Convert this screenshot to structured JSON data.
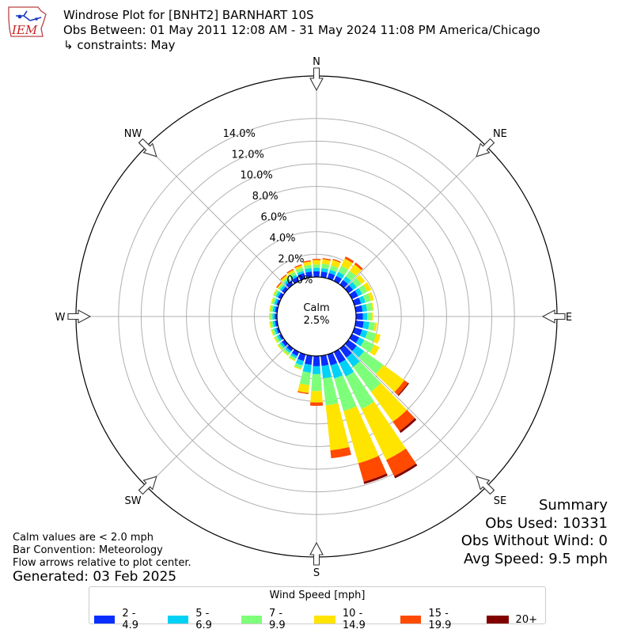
{
  "header": {
    "title": "Windrose Plot for [BNHT2] BARNHART 10S",
    "period": "Obs Between: 01 May 2011 12:08 AM - 31 May 2024 11:08 PM America/Chicago",
    "constraints": "↳ constraints: May"
  },
  "logo": {
    "text": "IEM"
  },
  "notes": {
    "calm_note": "Calm values are < 2.0 mph",
    "bar_convention": "Bar Convention: Meteorology",
    "flow_arrows": "Flow arrows relative to plot center.",
    "generated": "Generated: 03 Feb 2025"
  },
  "summary": {
    "title": "Summary",
    "obs_used": "Obs Used: 10331",
    "obs_without_wind": "Obs Without Wind: 0",
    "avg_speed": "Avg Speed: 9.5 mph"
  },
  "calm": {
    "label": "Calm",
    "value": "2.5%"
  },
  "legend": {
    "title": "Wind Speed [mph]",
    "items": [
      {
        "label": "2 - 4.9",
        "color": "#0a2eff"
      },
      {
        "label": "5 - 6.9",
        "color": "#00d2f5"
      },
      {
        "label": "7 - 9.9",
        "color": "#7eff7a"
      },
      {
        "label": "10 - 14.9",
        "color": "#ffe400"
      },
      {
        "label": "15 - 19.9",
        "color": "#ff4a00"
      },
      {
        "label": "20+",
        "color": "#800000"
      }
    ]
  },
  "chart_data": {
    "type": "windrose",
    "radial_ticks": [
      "0.0%",
      "2.0%",
      "4.0%",
      "6.0%",
      "8.0%",
      "10.0%",
      "12.0%",
      "14.0%"
    ],
    "radial_values": [
      0,
      2,
      4,
      6,
      8,
      10,
      12,
      14
    ],
    "calm_percent": 2.5,
    "directions": [
      "N",
      "NE",
      "E",
      "SE",
      "S",
      "SW",
      "W",
      "NW"
    ],
    "speed_bins": [
      "2 - 4.9",
      "5 - 6.9",
      "7 - 9.9",
      "10 - 14.9",
      "15 - 19.9",
      "20+"
    ],
    "sectors": [
      {
        "dir_deg": 0,
        "values": [
          0.5,
          0.3,
          0.3,
          0.4,
          0.1,
          0.0
        ]
      },
      {
        "dir_deg": 10,
        "values": [
          0.5,
          0.3,
          0.4,
          0.4,
          0.1,
          0.0
        ]
      },
      {
        "dir_deg": 20,
        "values": [
          0.5,
          0.3,
          0.4,
          0.5,
          0.1,
          0.0
        ]
      },
      {
        "dir_deg": 30,
        "values": [
          0.5,
          0.4,
          0.6,
          0.7,
          0.2,
          0.0
        ]
      },
      {
        "dir_deg": 40,
        "values": [
          0.5,
          0.4,
          0.6,
          0.7,
          0.2,
          0.0
        ]
      },
      {
        "dir_deg": 50,
        "values": [
          0.5,
          0.4,
          0.5,
          0.4,
          0.0,
          0.0
        ]
      },
      {
        "dir_deg": 60,
        "values": [
          0.6,
          0.4,
          0.5,
          0.4,
          0.0,
          0.0
        ]
      },
      {
        "dir_deg": 70,
        "values": [
          0.6,
          0.4,
          0.5,
          0.3,
          0.0,
          0.0
        ]
      },
      {
        "dir_deg": 80,
        "values": [
          0.6,
          0.4,
          0.5,
          0.1,
          0.0,
          0.0
        ]
      },
      {
        "dir_deg": 90,
        "values": [
          0.6,
          0.4,
          0.4,
          0.1,
          0.0,
          0.0
        ]
      },
      {
        "dir_deg": 100,
        "values": [
          0.7,
          0.5,
          0.5,
          0.2,
          0.0,
          0.0
        ]
      },
      {
        "dir_deg": 110,
        "values": [
          0.7,
          0.5,
          0.8,
          0.4,
          0.0,
          0.0
        ]
      },
      {
        "dir_deg": 120,
        "values": [
          0.7,
          0.5,
          1.0,
          0.5,
          0.0,
          0.0
        ]
      },
      {
        "dir_deg": 130,
        "values": [
          0.9,
          0.8,
          2.1,
          2.3,
          0.4,
          0.1
        ]
      },
      {
        "dir_deg": 140,
        "values": [
          1.0,
          1.0,
          2.7,
          3.3,
          1.0,
          0.2
        ]
      },
      {
        "dir_deg": 150,
        "values": [
          1.1,
          1.3,
          3.2,
          5.0,
          1.6,
          0.2
        ]
      },
      {
        "dir_deg": 160,
        "values": [
          1.0,
          1.2,
          3.0,
          4.8,
          1.7,
          0.2
        ]
      },
      {
        "dir_deg": 170,
        "values": [
          0.9,
          1.1,
          2.4,
          4.0,
          0.7,
          0.0
        ]
      },
      {
        "dir_deg": 180,
        "values": [
          0.9,
          0.7,
          1.5,
          1.0,
          0.3,
          0.0
        ]
      },
      {
        "dir_deg": 190,
        "values": [
          0.8,
          0.7,
          1.1,
          0.7,
          0.1,
          0.0
        ]
      },
      {
        "dir_deg": 200,
        "values": [
          0.6,
          0.4,
          0.3,
          0.1,
          0.0,
          0.0
        ]
      },
      {
        "dir_deg": 210,
        "values": [
          0.4,
          0.2,
          0.2,
          0.1,
          0.0,
          0.0
        ]
      },
      {
        "dir_deg": 220,
        "values": [
          0.3,
          0.2,
          0.2,
          0.1,
          0.0,
          0.0
        ]
      },
      {
        "dir_deg": 230,
        "values": [
          0.3,
          0.2,
          0.2,
          0.1,
          0.0,
          0.0
        ]
      },
      {
        "dir_deg": 240,
        "values": [
          0.2,
          0.2,
          0.2,
          0.1,
          0.0,
          0.0
        ]
      },
      {
        "dir_deg": 250,
        "values": [
          0.2,
          0.2,
          0.2,
          0.1,
          0.0,
          0.0
        ]
      },
      {
        "dir_deg": 260,
        "values": [
          0.2,
          0.2,
          0.2,
          0.1,
          0.0,
          0.0
        ]
      },
      {
        "dir_deg": 270,
        "values": [
          0.2,
          0.2,
          0.2,
          0.1,
          0.0,
          0.0
        ]
      },
      {
        "dir_deg": 280,
        "values": [
          0.2,
          0.2,
          0.2,
          0.1,
          0.0,
          0.0
        ]
      },
      {
        "dir_deg": 290,
        "values": [
          0.2,
          0.2,
          0.2,
          0.1,
          0.0,
          0.0
        ]
      },
      {
        "dir_deg": 300,
        "values": [
          0.3,
          0.2,
          0.2,
          0.1,
          0.0,
          0.0
        ]
      },
      {
        "dir_deg": 310,
        "values": [
          0.3,
          0.2,
          0.2,
          0.1,
          0.1,
          0.0
        ]
      },
      {
        "dir_deg": 320,
        "values": [
          0.4,
          0.2,
          0.2,
          0.2,
          0.1,
          0.0
        ]
      },
      {
        "dir_deg": 330,
        "values": [
          0.4,
          0.2,
          0.3,
          0.2,
          0.1,
          0.0
        ]
      },
      {
        "dir_deg": 340,
        "values": [
          0.5,
          0.2,
          0.3,
          0.2,
          0.1,
          0.0
        ]
      },
      {
        "dir_deg": 350,
        "values": [
          0.5,
          0.3,
          0.3,
          0.3,
          0.1,
          0.0
        ]
      }
    ]
  }
}
